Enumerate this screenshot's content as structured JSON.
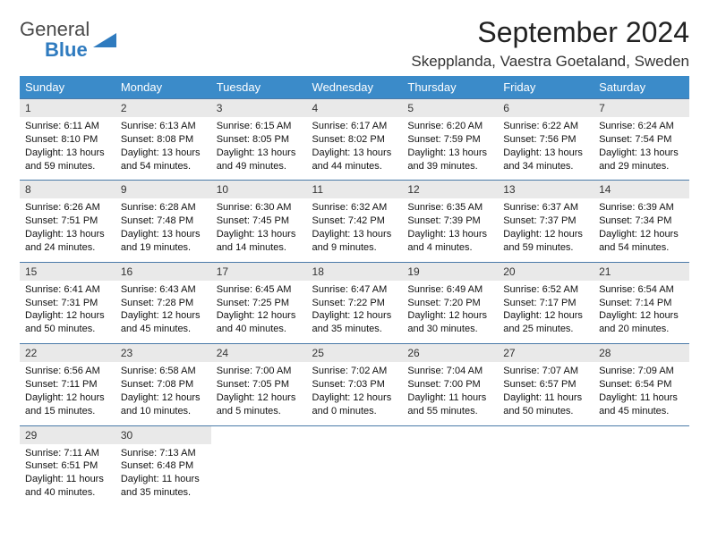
{
  "logo": {
    "text1": "General",
    "text2": "Blue"
  },
  "title": "September 2024",
  "location": "Skepplanda, Vaestra Goetaland, Sweden",
  "colors": {
    "header_bg": "#3b8bc9",
    "header_text": "#ffffff",
    "daynum_bg": "#e9e9e9",
    "row_border": "#4a7aa8",
    "logo_blue": "#2f7bbf"
  },
  "weekdays": [
    "Sunday",
    "Monday",
    "Tuesday",
    "Wednesday",
    "Thursday",
    "Friday",
    "Saturday"
  ],
  "weeks": [
    [
      {
        "n": "1",
        "sr": "6:11 AM",
        "ss": "8:10 PM",
        "dl": "13 hours and 59 minutes."
      },
      {
        "n": "2",
        "sr": "6:13 AM",
        "ss": "8:08 PM",
        "dl": "13 hours and 54 minutes."
      },
      {
        "n": "3",
        "sr": "6:15 AM",
        "ss": "8:05 PM",
        "dl": "13 hours and 49 minutes."
      },
      {
        "n": "4",
        "sr": "6:17 AM",
        "ss": "8:02 PM",
        "dl": "13 hours and 44 minutes."
      },
      {
        "n": "5",
        "sr": "6:20 AM",
        "ss": "7:59 PM",
        "dl": "13 hours and 39 minutes."
      },
      {
        "n": "6",
        "sr": "6:22 AM",
        "ss": "7:56 PM",
        "dl": "13 hours and 34 minutes."
      },
      {
        "n": "7",
        "sr": "6:24 AM",
        "ss": "7:54 PM",
        "dl": "13 hours and 29 minutes."
      }
    ],
    [
      {
        "n": "8",
        "sr": "6:26 AM",
        "ss": "7:51 PM",
        "dl": "13 hours and 24 minutes."
      },
      {
        "n": "9",
        "sr": "6:28 AM",
        "ss": "7:48 PM",
        "dl": "13 hours and 19 minutes."
      },
      {
        "n": "10",
        "sr": "6:30 AM",
        "ss": "7:45 PM",
        "dl": "13 hours and 14 minutes."
      },
      {
        "n": "11",
        "sr": "6:32 AM",
        "ss": "7:42 PM",
        "dl": "13 hours and 9 minutes."
      },
      {
        "n": "12",
        "sr": "6:35 AM",
        "ss": "7:39 PM",
        "dl": "13 hours and 4 minutes."
      },
      {
        "n": "13",
        "sr": "6:37 AM",
        "ss": "7:37 PM",
        "dl": "12 hours and 59 minutes."
      },
      {
        "n": "14",
        "sr": "6:39 AM",
        "ss": "7:34 PM",
        "dl": "12 hours and 54 minutes."
      }
    ],
    [
      {
        "n": "15",
        "sr": "6:41 AM",
        "ss": "7:31 PM",
        "dl": "12 hours and 50 minutes."
      },
      {
        "n": "16",
        "sr": "6:43 AM",
        "ss": "7:28 PM",
        "dl": "12 hours and 45 minutes."
      },
      {
        "n": "17",
        "sr": "6:45 AM",
        "ss": "7:25 PM",
        "dl": "12 hours and 40 minutes."
      },
      {
        "n": "18",
        "sr": "6:47 AM",
        "ss": "7:22 PM",
        "dl": "12 hours and 35 minutes."
      },
      {
        "n": "19",
        "sr": "6:49 AM",
        "ss": "7:20 PM",
        "dl": "12 hours and 30 minutes."
      },
      {
        "n": "20",
        "sr": "6:52 AM",
        "ss": "7:17 PM",
        "dl": "12 hours and 25 minutes."
      },
      {
        "n": "21",
        "sr": "6:54 AM",
        "ss": "7:14 PM",
        "dl": "12 hours and 20 minutes."
      }
    ],
    [
      {
        "n": "22",
        "sr": "6:56 AM",
        "ss": "7:11 PM",
        "dl": "12 hours and 15 minutes."
      },
      {
        "n": "23",
        "sr": "6:58 AM",
        "ss": "7:08 PM",
        "dl": "12 hours and 10 minutes."
      },
      {
        "n": "24",
        "sr": "7:00 AM",
        "ss": "7:05 PM",
        "dl": "12 hours and 5 minutes."
      },
      {
        "n": "25",
        "sr": "7:02 AM",
        "ss": "7:03 PM",
        "dl": "12 hours and 0 minutes."
      },
      {
        "n": "26",
        "sr": "7:04 AM",
        "ss": "7:00 PM",
        "dl": "11 hours and 55 minutes."
      },
      {
        "n": "27",
        "sr": "7:07 AM",
        "ss": "6:57 PM",
        "dl": "11 hours and 50 minutes."
      },
      {
        "n": "28",
        "sr": "7:09 AM",
        "ss": "6:54 PM",
        "dl": "11 hours and 45 minutes."
      }
    ],
    [
      {
        "n": "29",
        "sr": "7:11 AM",
        "ss": "6:51 PM",
        "dl": "11 hours and 40 minutes."
      },
      {
        "n": "30",
        "sr": "7:13 AM",
        "ss": "6:48 PM",
        "dl": "11 hours and 35 minutes."
      },
      null,
      null,
      null,
      null,
      null
    ]
  ],
  "labels": {
    "sunrise": "Sunrise:",
    "sunset": "Sunset:",
    "daylight": "Daylight:"
  }
}
